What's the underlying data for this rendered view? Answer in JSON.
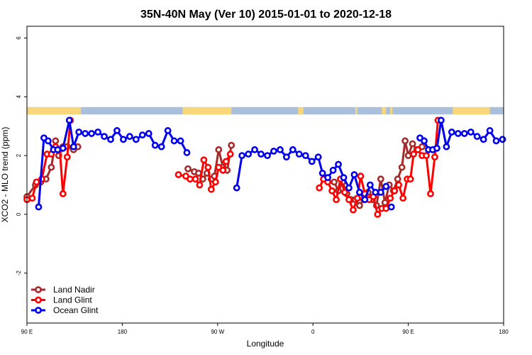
{
  "chart_data": {
    "type": "line",
    "title": "35N-40N May (Ver 10)   2015-01-01 to 2020-12-18",
    "xlabel": "Longitude",
    "ylabel": "XCO2 - MLO trend (ppm)",
    "xlim": [
      90,
      540
    ],
    "ylim": [
      -3.7,
      6.4
    ],
    "x_ticks": [
      {
        "value": 90,
        "label": "90 E"
      },
      {
        "value": 180,
        "label": "180"
      },
      {
        "value": 270,
        "label": "90 W"
      },
      {
        "value": 360,
        "label": "0"
      },
      {
        "value": 450,
        "label": "90 E"
      },
      {
        "value": 540,
        "label": "180"
      }
    ],
    "y_ticks": [
      {
        "value": -2,
        "label": "-2"
      },
      {
        "value": 0,
        "label": "0"
      },
      {
        "value": 2,
        "label": "2"
      },
      {
        "value": 4,
        "label": "4"
      },
      {
        "value": 6,
        "label": "6"
      }
    ],
    "land_ocean_strip": {
      "y_range": [
        3.4,
        3.65
      ],
      "land_color": "#f7d77a",
      "ocean_color": "#a9bfdc",
      "land_intervals": [
        [
          90,
          141
        ],
        [
          237,
          283
        ],
        [
          346,
          351
        ],
        [
          400,
          402
        ],
        [
          425,
          429
        ],
        [
          433,
          435
        ],
        [
          492,
          527
        ]
      ]
    },
    "legend_position": "bottom-left",
    "series": [
      {
        "name": "Land Nadir",
        "color": "#a52a2a",
        "values": [
          [
            90,
            0.6
          ],
          [
            98,
            1.0
          ],
          [
            103,
            1.1
          ],
          [
            108,
            1.2
          ],
          [
            113,
            1.6
          ],
          [
            117,
            2.5
          ],
          [
            120,
            2.0
          ],
          [
            124,
            2.3
          ],
          [
            128,
            2.3
          ],
          [
            134,
            2.2
          ],
          [
            138,
            2.3
          ],
          [
            242,
            1.55
          ],
          [
            248,
            1.45
          ],
          [
            252,
            1.4
          ],
          [
            256,
            1.2
          ],
          [
            260,
            1.4
          ],
          [
            264,
            1.2
          ],
          [
            267,
            1.3
          ],
          [
            271,
            2.2
          ],
          [
            275,
            1.6
          ],
          [
            279,
            1.5
          ],
          [
            283,
            2.35
          ],
          [
            380,
            1.1
          ],
          [
            384,
            0.8
          ],
          [
            388,
            1.1
          ],
          [
            392,
            0.7
          ],
          [
            396,
            0.5
          ],
          [
            400,
            0.5
          ],
          [
            404,
            0.3
          ],
          [
            408,
            0.5
          ],
          [
            412,
            0.75
          ],
          [
            416,
            0.5
          ],
          [
            420,
            0.3
          ],
          [
            424,
            1.2
          ],
          [
            428,
            0.4
          ],
          [
            432,
            1.0
          ],
          [
            436,
            0.8
          ],
          [
            440,
            1.2
          ],
          [
            444,
            1.6
          ],
          [
            447,
            2.5
          ],
          [
            450,
            2.0
          ],
          [
            454,
            2.4
          ],
          [
            458,
            2.2
          ],
          [
            463,
            2.3
          ]
        ],
        "segments": [
          [
            90,
            138
          ],
          [
            242,
            283
          ],
          [
            380,
            463
          ]
        ]
      },
      {
        "name": "Land Glint",
        "color": "#ff0000",
        "values": [
          [
            90,
            0.5
          ],
          [
            95,
            0.55
          ],
          [
            99,
            1.1
          ],
          [
            104,
            1.2
          ],
          [
            109,
            2.05
          ],
          [
            113,
            2.05
          ],
          [
            117,
            2.3
          ],
          [
            121,
            2.2
          ],
          [
            124,
            0.7
          ],
          [
            128,
            1.95
          ],
          [
            131,
            3.2
          ],
          [
            233,
            1.35
          ],
          [
            240,
            1.3
          ],
          [
            244,
            1.2
          ],
          [
            249,
            1.2
          ],
          [
            253,
            1.0
          ],
          [
            257,
            1.85
          ],
          [
            261,
            1.6
          ],
          [
            264,
            0.85
          ],
          [
            268,
            1.1
          ],
          [
            271,
            1.6
          ],
          [
            275,
            1.5
          ],
          [
            278,
            1.8
          ],
          [
            282,
            2.05
          ],
          [
            366,
            0.9
          ],
          [
            370,
            1.2
          ],
          [
            374,
            1.1
          ],
          [
            378,
            0.8
          ],
          [
            382,
            0.5
          ],
          [
            386,
            1.2
          ],
          [
            390,
            0.75
          ],
          [
            394,
            0.5
          ],
          [
            398,
            0.15
          ],
          [
            402,
            0.55
          ],
          [
            405,
            1.3
          ],
          [
            409,
            0.7
          ],
          [
            413,
            0.5
          ],
          [
            417,
            0.6
          ],
          [
            421,
            0.0
          ],
          [
            425,
            0.2
          ],
          [
            429,
            0.2
          ],
          [
            433,
            0.55
          ],
          [
            437,
            0.8
          ],
          [
            441,
            1.0
          ],
          [
            445,
            0.55
          ],
          [
            449,
            1.2
          ],
          [
            452,
            1.2
          ],
          [
            455,
            2.05
          ],
          [
            459,
            2.2
          ],
          [
            463,
            2.0
          ],
          [
            467,
            2.0
          ],
          [
            471,
            0.7
          ],
          [
            475,
            1.95
          ],
          [
            478,
            3.2
          ]
        ],
        "segments": [
          [
            90,
            131
          ],
          [
            233,
            282
          ],
          [
            366,
            478
          ]
        ]
      },
      {
        "name": "Ocean Glint",
        "color": "#0000ee",
        "values": [
          [
            101,
            0.25
          ],
          [
            106,
            2.6
          ],
          [
            110,
            2.5
          ],
          [
            115,
            2.2
          ],
          [
            119,
            2.2
          ],
          [
            124,
            2.25
          ],
          [
            130,
            3.2
          ],
          [
            134,
            2.3
          ],
          [
            139,
            2.8
          ],
          [
            145,
            2.75
          ],
          [
            151,
            2.75
          ],
          [
            157,
            2.8
          ],
          [
            163,
            2.65
          ],
          [
            169,
            2.55
          ],
          [
            175,
            2.85
          ],
          [
            181,
            2.55
          ],
          [
            187,
            2.65
          ],
          [
            193,
            2.55
          ],
          [
            199,
            2.7
          ],
          [
            205,
            2.75
          ],
          [
            211,
            2.35
          ],
          [
            217,
            2.3
          ],
          [
            223,
            2.85
          ],
          [
            229,
            2.5
          ],
          [
            235,
            2.5
          ],
          [
            241,
            2.1
          ],
          [
            288,
            0.9
          ],
          [
            293,
            2.0
          ],
          [
            299,
            2.05
          ],
          [
            305,
            2.2
          ],
          [
            311,
            2.05
          ],
          [
            317,
            2.0
          ],
          [
            323,
            2.15
          ],
          [
            329,
            2.2
          ],
          [
            335,
            1.95
          ],
          [
            341,
            2.2
          ],
          [
            347,
            2.05
          ],
          [
            353,
            2.0
          ],
          [
            359,
            1.8
          ],
          [
            365,
            1.95
          ],
          [
            369,
            1.4
          ],
          [
            374,
            1.25
          ],
          [
            379,
            1.5
          ],
          [
            384,
            1.7
          ],
          [
            389,
            1.25
          ],
          [
            394,
            0.9
          ],
          [
            399,
            1.35
          ],
          [
            404,
            0.75
          ],
          [
            409,
            0.5
          ],
          [
            414,
            1.0
          ],
          [
            419,
            0.75
          ],
          [
            424,
            0.75
          ],
          [
            429,
            0.95
          ],
          [
            434,
            0.25
          ],
          [
            461,
            2.6
          ],
          [
            465,
            2.5
          ],
          [
            469,
            2.2
          ],
          [
            473,
            2.2
          ],
          [
            477,
            2.25
          ],
          [
            481,
            3.2
          ],
          [
            486,
            2.3
          ],
          [
            491,
            2.8
          ],
          [
            497,
            2.75
          ],
          [
            503,
            2.75
          ],
          [
            509,
            2.8
          ],
          [
            515,
            2.65
          ],
          [
            521,
            2.55
          ],
          [
            527,
            2.85
          ],
          [
            533,
            2.5
          ],
          [
            539,
            2.55
          ]
        ],
        "segments": [
          [
            101,
            241
          ],
          [
            288,
            429
          ],
          [
            461,
            539
          ]
        ],
        "isolated_points": [
          [
            434,
            0.25
          ]
        ]
      }
    ]
  }
}
